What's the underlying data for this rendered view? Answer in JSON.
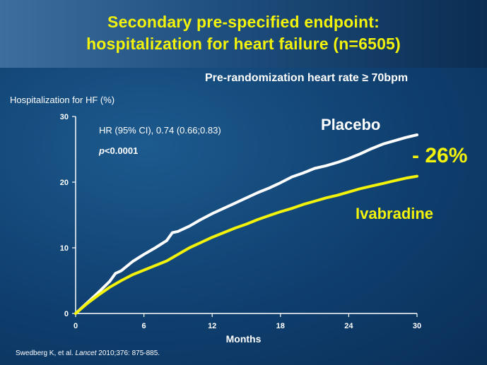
{
  "title": {
    "line1": "Secondary pre-specified endpoint:",
    "line2": "hospitalization for heart failure (n=6505)"
  },
  "subtitle": "Pre-randomization heart rate ≥ 70bpm",
  "annotations": {
    "hr": "HR (95% CI), 0.74 (0.66;0.83)",
    "p_symbol": "p",
    "p_value": "<0.0001",
    "reduction": "- 26%"
  },
  "citation": {
    "authors": "Swedberg K, et al. ",
    "journal": "Lancet",
    "details": " 2010;376: 875-885."
  },
  "colors": {
    "placebo": "#ffffff",
    "ivabradine": "#f2f20a",
    "accent": "#f2f20a"
  },
  "chart_data": {
    "type": "line",
    "ylabel": "Hospitalization for HF (%)",
    "xlabel": "Months",
    "xlim": [
      0,
      30
    ],
    "ylim": [
      0,
      30
    ],
    "xticks": [
      0,
      6,
      12,
      18,
      24,
      30
    ],
    "yticks": [
      0,
      10,
      20,
      30
    ],
    "grid": false,
    "series": [
      {
        "name": "Placebo",
        "color": "#ffffff",
        "x": [
          0,
          1,
          2,
          3,
          3.5,
          4,
          5,
          6,
          7,
          8,
          8.5,
          9,
          10,
          11,
          12,
          13,
          14,
          15,
          16,
          17,
          18,
          19,
          20,
          21,
          22,
          23,
          24,
          25,
          26,
          27,
          28,
          29,
          30
        ],
        "y": [
          0,
          1.6,
          3.2,
          4.9,
          6.1,
          6.5,
          7.9,
          9.0,
          10.0,
          11.1,
          12.3,
          12.5,
          13.3,
          14.3,
          15.2,
          16.0,
          16.8,
          17.6,
          18.4,
          19.1,
          19.9,
          20.8,
          21.4,
          22.1,
          22.5,
          23.0,
          23.6,
          24.3,
          25.1,
          25.8,
          26.3,
          26.8,
          27.2
        ]
      },
      {
        "name": "Ivabradine",
        "color": "#f2f20a",
        "x": [
          0,
          1,
          2,
          3,
          4,
          5,
          6,
          7,
          8,
          9,
          10,
          11,
          12,
          13,
          14,
          15,
          16,
          17,
          18,
          19,
          20,
          21,
          22,
          23,
          24,
          25,
          26,
          27,
          28,
          29,
          30
        ],
        "y": [
          0,
          1.5,
          2.8,
          4.0,
          5.0,
          5.9,
          6.6,
          7.3,
          8.0,
          9.0,
          10.0,
          10.8,
          11.6,
          12.3,
          13.0,
          13.6,
          14.3,
          14.9,
          15.5,
          16.0,
          16.6,
          17.1,
          17.6,
          18.0,
          18.5,
          19.0,
          19.4,
          19.8,
          20.2,
          20.6,
          20.9
        ]
      }
    ]
  }
}
